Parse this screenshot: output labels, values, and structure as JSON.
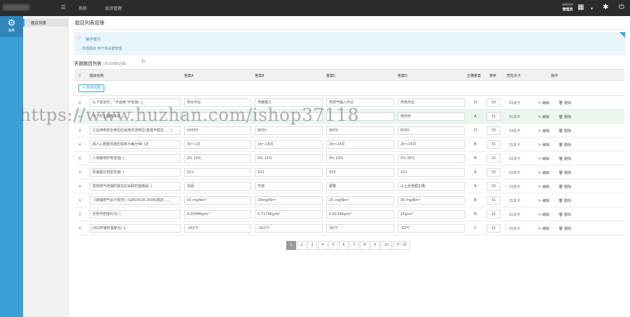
{
  "topbar": {
    "nav": [
      "系统",
      "会员管理"
    ],
    "admin_name": "admin",
    "admin_role": "管理员",
    "icons": [
      "menu-icon",
      "id-card-icon",
      "caret-down-icon",
      "settings-icon",
      "power-icon"
    ]
  },
  "rail": {
    "label": "题库"
  },
  "subbar": {
    "items": [
      "题目列表"
    ]
  },
  "main": {
    "page_title": "题目列表管理",
    "tips": {
      "title": "操作提示",
      "body": "- 单题题目 用于单设置管理."
    },
    "list_title": "答题题目列表",
    "list_count": "(共100条记录)",
    "headers": [
      "题目名称",
      "答案A",
      "答案B",
      "答案C",
      "答案D",
      "正确答案",
      "排序",
      "危险关卡",
      "操作"
    ],
    "add_button": "+ 新增问题",
    "rows": [
      {
        "q": "以下说法中，“不适用”不包括( )。",
        "a": "供水作业",
        "b": "供暖施工",
        "c": "供燃气输入作业",
        "d": "供热作业",
        "ans": "D",
        "sort": "33",
        "level": "33关卡",
        "edit": "编辑",
        "del": "删除"
      },
      {
        "q": "为了防止触电事故……",
        "a": "",
        "b": "",
        "c": "",
        "d": "电伤死",
        "ans": "A",
        "sort": "31",
        "level": "31关卡",
        "edit": "编辑",
        "del": "删除"
      },
      {
        "q": "工业用电安全电压应采用交流电压(其值不超过……)",
        "a": "1000V",
        "b": "800V",
        "c": "900V",
        "d": "600V",
        "ans": "D",
        "sort": "33",
        "level": "33关卡",
        "edit": "编辑",
        "del": "删除"
      },
      {
        "q": "成人心肺复苏按压频率为每分钟(  )次",
        "a": "30～1次",
        "b": "16～18次",
        "c": "16～24次",
        "d": "20～25次",
        "ans": "B",
        "sort": "31",
        "level": "31关卡",
        "edit": "编辑",
        "del": "删除"
      },
      {
        "q": "人体触电时电流值(   )",
        "a": "2% 10%",
        "b": "5% 15%",
        "c": "0% 20%",
        "d": "5% 35%",
        "ans": "B",
        "sort": "32",
        "level": "32关卡",
        "edit": "编辑",
        "del": "删除"
      },
      {
        "q": "风速超过规定风速(   )",
        "a": "101",
        "b": "102",
        "c": "105",
        "d": "101",
        "ans": "A",
        "sort": "32",
        "level": "32关卡",
        "edit": "编辑",
        "del": "删除"
      },
      {
        "q": "发现燃气泄漏时首先应采取的措施是(   )",
        "a": "关阀",
        "b": "开窗",
        "c": "报警",
        "d": "以上全部都正确",
        "ans": "A",
        "sort": "32",
        "level": "32关卡",
        "edit": "编辑",
        "del": "删除"
      },
      {
        "q": "《城镇燃气设计规范》(GB50028-2006)规定……",
        "a": "15 mg/Nm³",
        "b": "20mg/Nm³",
        "c": "25 mg/Nm³",
        "d": "30 mg/Nm³",
        "ans": "B",
        "sort": "31",
        "level": "31关卡",
        "edit": "编辑",
        "del": "删除"
      },
      {
        "q": "天然气密度约为(  )",
        "a": "0.5548Kg/m³",
        "b": "0.7174Kg/m³",
        "c": "0.8124Kg/m³",
        "d": "1Kg/m³",
        "ans": "B",
        "sort": "31",
        "level": "31关卡",
        "edit": "编辑",
        "del": "删除"
      },
      {
        "q": "LNG的储存温度为(  )。",
        "a": "-162℃",
        "b": "-162℃",
        "c": "-82℃",
        "d": "-82℃",
        "ans": "C",
        "sort": "31",
        "level": "31关卡",
        "edit": "编辑",
        "del": "删除"
      }
    ],
    "pagination": [
      "1",
      "2",
      "3",
      "4",
      "5",
      "6",
      "7",
      "8",
      "9",
      "10",
      "下一页"
    ],
    "pagination_active": "1"
  },
  "watermark": "https://www.huzhan.com/ishop37118",
  "colors": {
    "accent": "#3ba0d8",
    "topbar": "#2b2b2b",
    "tips_bg": "#e8f5fb",
    "highlight_row": "#eaf6ee"
  }
}
